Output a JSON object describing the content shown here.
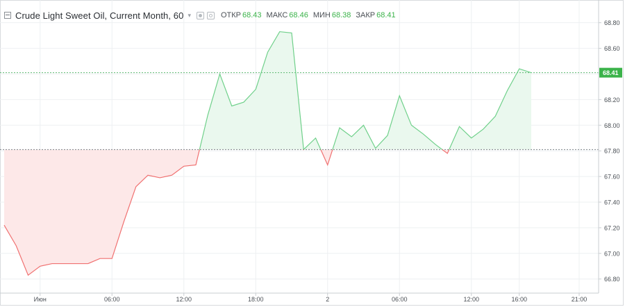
{
  "legend": {
    "title": "Crude Light Sweet Oil, Current Month, 60",
    "open_label": "ОТКР",
    "open_value": "68.43",
    "high_label": "МАКС",
    "high_value": "68.46",
    "low_label": "МИН",
    "low_value": "68.38",
    "close_label": "ЗАКР",
    "close_value": "68.41"
  },
  "colors": {
    "up_line": "#6fd08a",
    "up_fill": "#eaf8ee",
    "down_line": "#f07070",
    "down_fill": "#fde8e8",
    "baseline": "#5cb870",
    "price_tag": "#3bb34a"
  },
  "chart_data": {
    "type": "area",
    "title": "Crude Light Sweet Oil, Current Month, 60",
    "ylim": [
      66.69,
      68.95
    ],
    "y_ticks": [
      "68.80",
      "68.60",
      "68.40",
      "68.20",
      "68.00",
      "67.80",
      "67.60",
      "67.40",
      "67.20",
      "67.00",
      "66.80"
    ],
    "x_ticks": [
      "Июн",
      "06:00",
      "12:00",
      "18:00",
      "2",
      "06:00",
      "12:00",
      "16:00",
      "21:00"
    ],
    "baseline_value": 67.81,
    "last_price": "68.41",
    "grid": true,
    "legend_position": "top-left",
    "x": [
      "2020-05-31T21:00",
      "2020-05-31T22:00",
      "2020-05-31T23:00",
      "2020-06-01T00:00",
      "2020-06-01T01:00",
      "2020-06-01T02:00",
      "2020-06-01T03:00",
      "2020-06-01T04:00",
      "2020-06-01T05:00",
      "2020-06-01T06:00",
      "2020-06-01T07:00",
      "2020-06-01T08:00",
      "2020-06-01T09:00",
      "2020-06-01T10:00",
      "2020-06-01T11:00",
      "2020-06-01T12:00",
      "2020-06-01T13:00",
      "2020-06-01T14:00",
      "2020-06-01T15:00",
      "2020-06-01T16:00",
      "2020-06-01T17:00",
      "2020-06-01T18:00",
      "2020-06-01T19:00",
      "2020-06-01T20:00",
      "2020-06-01T21:00",
      "2020-06-01T22:00",
      "2020-06-01T23:00",
      "2020-06-02T00:00",
      "2020-06-02T01:00",
      "2020-06-02T02:00",
      "2020-06-02T03:00",
      "2020-06-02T04:00",
      "2020-06-02T05:00",
      "2020-06-02T06:00",
      "2020-06-02T07:00",
      "2020-06-02T08:00",
      "2020-06-02T09:00",
      "2020-06-02T10:00",
      "2020-06-02T11:00",
      "2020-06-02T12:00",
      "2020-06-02T13:00",
      "2020-06-02T14:00",
      "2020-06-02T15:00",
      "2020-06-02T16:00",
      "2020-06-02T17:00"
    ],
    "values": [
      67.22,
      67.06,
      66.83,
      66.9,
      66.92,
      66.92,
      66.92,
      66.92,
      66.96,
      66.96,
      67.25,
      67.52,
      67.61,
      67.59,
      67.61,
      67.68,
      67.69,
      68.08,
      68.4,
      68.15,
      68.18,
      68.28,
      68.57,
      68.73,
      68.72,
      67.81,
      67.9,
      67.69,
      67.98,
      67.91,
      68.0,
      67.82,
      67.92,
      68.23,
      68.0,
      67.93,
      67.85,
      67.78,
      67.99,
      67.9,
      67.97,
      68.07,
      68.27,
      68.44,
      68.41
    ]
  }
}
